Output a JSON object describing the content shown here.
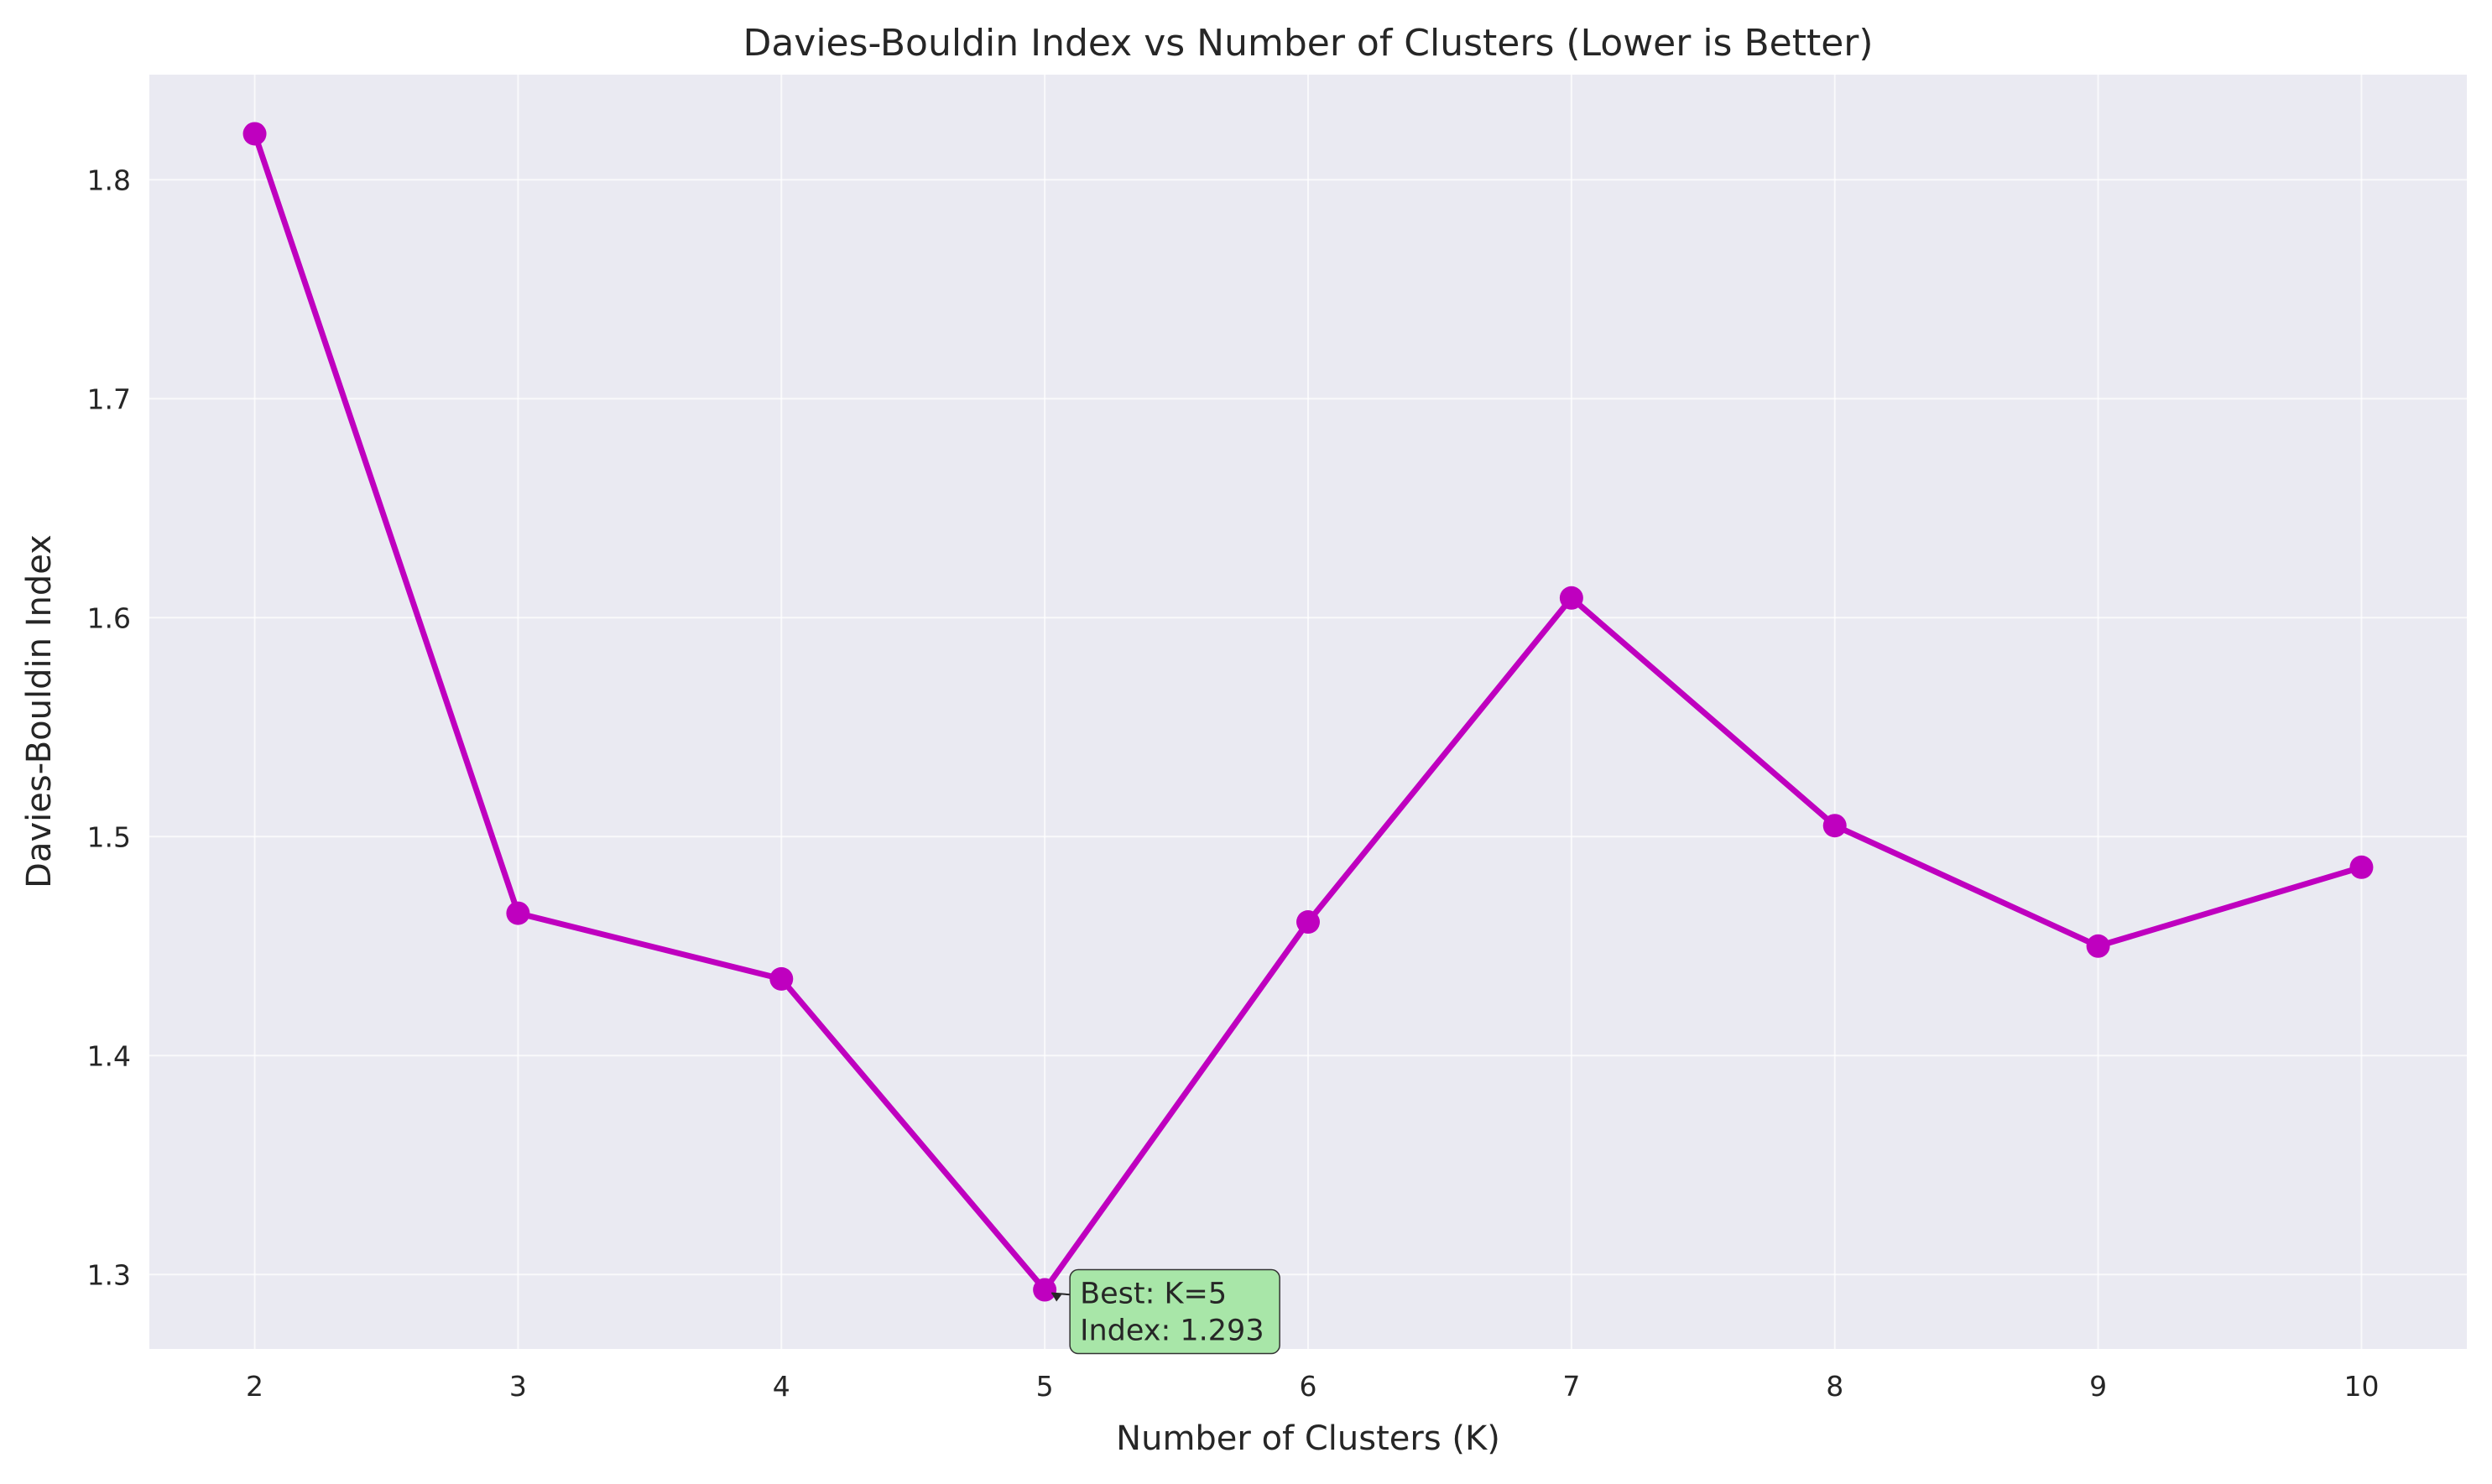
{
  "chart_data": {
    "type": "line",
    "title": "Davies-Bouldin Index vs Number of Clusters (Lower is Better)",
    "xlabel": "Number of Clusters (K)",
    "ylabel": "Davies-Bouldin Index",
    "x": [
      2,
      3,
      4,
      5,
      6,
      7,
      8,
      9,
      10
    ],
    "series": [
      {
        "values": [
          1.821,
          1.465,
          1.435,
          1.293,
          1.461,
          1.609,
          1.505,
          1.45,
          1.486
        ],
        "color": "#bf00bf"
      }
    ],
    "xticks": [
      "2",
      "3",
      "4",
      "5",
      "6",
      "7",
      "8",
      "9",
      "10"
    ],
    "yticks": [
      "1.3",
      "1.4",
      "1.5",
      "1.6",
      "1.7",
      "1.8"
    ],
    "ytick_values": [
      1.3,
      1.4,
      1.5,
      1.6,
      1.7,
      1.8
    ],
    "xlim": [
      1.6,
      10.4
    ],
    "ylim": [
      1.266,
      1.848
    ],
    "grid": true,
    "legend": "none",
    "background_color": "#eaeaf2",
    "annotation": {
      "x": 5,
      "y": 1.293,
      "line1": "Best: K=5",
      "line2": "Index: 1.293",
      "box_color": "#a8e6a8"
    }
  }
}
